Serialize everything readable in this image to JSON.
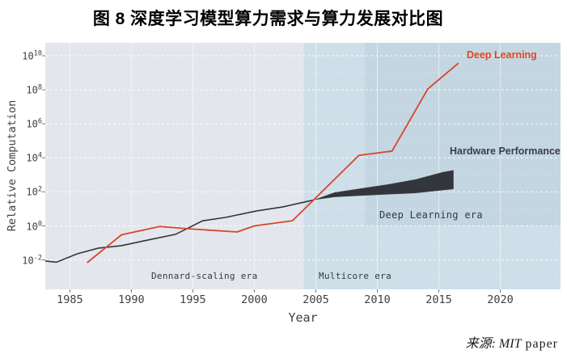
{
  "title": "图 8 深度学习模型算力需求与算力发展对比图",
  "source": {
    "prefix": "来源: MIT",
    "suffix": " paper"
  },
  "colors": {
    "page_bg": "#ffffff",
    "dennard_bg": "#e4e6ed",
    "multicore_bg": "#cfdfe9",
    "dl_era_bg": "#c3d6e2",
    "grid": "#ffffff",
    "deep_learning_red": "#d9452c",
    "deep_learning_label_red": "#e2451c",
    "hardware_dark": "#33373c",
    "axis_text": "#3f4144"
  },
  "chart_data": {
    "type": "line",
    "title": "图 8 深度学习模型算力需求与算力发展对比图",
    "xlabel": "Year",
    "ylabel": "Relative Computation",
    "x_ticks": [
      1985,
      1990,
      1995,
      2000,
      2005,
      2010,
      2015,
      2020
    ],
    "y_tick_exponents": [
      10,
      8,
      6,
      4,
      2,
      0,
      -2
    ],
    "y_minor_exponents": [
      9,
      7,
      5,
      3,
      1,
      -1,
      -3
    ],
    "xlim": [
      1983,
      2024.9
    ],
    "ylim_exponents": [
      -3.7,
      10.8
    ],
    "grid": "white dashed gridlines on shaded panel",
    "legend_position": "inline annotations",
    "eras": [
      {
        "label": "Dennard-scaling era",
        "start": 1983,
        "end": 2004.0
      },
      {
        "label": "Multicore era",
        "start": 2004.0,
        "end": 2024.9
      }
    ],
    "highlight_region": {
      "label": "Deep Learning era",
      "start": 2009.0,
      "end": 2024.9,
      "min_value": 1.0
    },
    "series": [
      {
        "name": "Deep Learning",
        "color": "#d9452c",
        "points": [
          [
            1986.4,
            0.0069
          ],
          [
            1989.2,
            0.3
          ],
          [
            1992.3,
            0.92
          ],
          [
            1994.6,
            0.68
          ],
          [
            1998.6,
            0.44
          ],
          [
            2000.0,
            1.0
          ],
          [
            2003.1,
            2.0
          ],
          [
            2008.5,
            14000
          ],
          [
            2011.2,
            25000
          ],
          [
            2014.1,
            110000000
          ],
          [
            2016.6,
            3700000000
          ]
        ]
      },
      {
        "name": "Hardware Performance",
        "color": "#33373c",
        "line_points": [
          [
            1983.0,
            0.0086
          ],
          [
            1983.9,
            0.0073
          ],
          [
            1985.6,
            0.023
          ],
          [
            1987.3,
            0.049
          ],
          [
            1989.2,
            0.069
          ],
          [
            1991.4,
            0.15
          ],
          [
            1993.6,
            0.32
          ],
          [
            1995.8,
            2.0
          ],
          [
            1997.7,
            3.2
          ],
          [
            2000.2,
            7.6
          ],
          [
            2002.3,
            13
          ],
          [
            2004.8,
            33
          ]
        ],
        "band_upper": [
          [
            2004.8,
            33
          ],
          [
            2006.5,
            93
          ],
          [
            2008.7,
            162
          ],
          [
            2010.9,
            280
          ],
          [
            2013.1,
            540
          ],
          [
            2015.3,
            1450
          ],
          [
            2016.2,
            1900
          ]
        ],
        "band_lower": [
          [
            2004.8,
            33
          ],
          [
            2006.5,
            49
          ],
          [
            2008.7,
            60
          ],
          [
            2010.9,
            71
          ],
          [
            2013.1,
            84
          ],
          [
            2016.2,
            145
          ]
        ]
      }
    ]
  }
}
